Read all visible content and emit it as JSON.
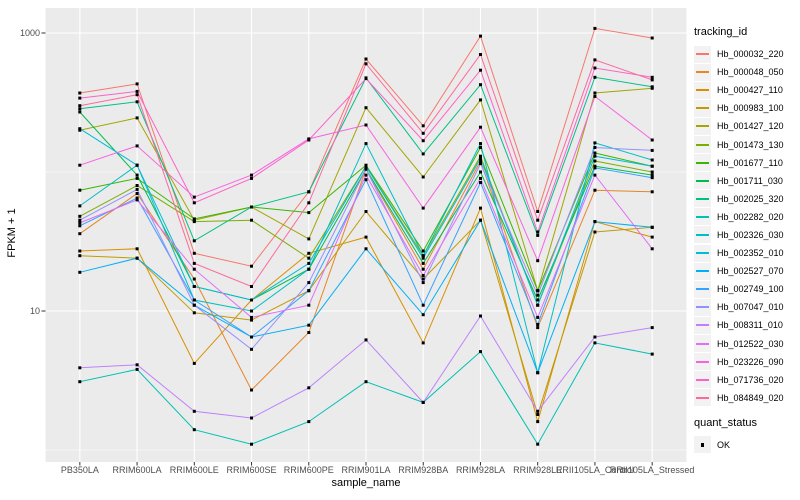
{
  "chart_data": {
    "type": "line",
    "xlabel": "sample_name",
    "ylabel": "FPKM + 1",
    "y_scale": "log10",
    "y_ticks": [
      {
        "label": "1000",
        "value": 1000
      },
      {
        "label": "10",
        "value": 10
      }
    ],
    "y_minor_gridlines": [
      100,
      1
    ],
    "categories": [
      "PB350LA",
      "RRIM600LA",
      "RRIM600LE",
      "RRIM600SE",
      "RRIM600PE",
      "RRIM901LA",
      "RRIM928BA",
      "RRIM928LA",
      "RRIM928LE",
      "RRII105LA_Control",
      "RRII105LA_Stressed"
    ],
    "legend_title": "tracking_id",
    "series": [
      {
        "name": "Hb_000032_220",
        "color": "#F8766D",
        "values": [
          370,
          430,
          26,
          21,
          72,
          650,
          215,
          950,
          52,
          1080,
          920
        ]
      },
      {
        "name": "Hb_000048_050",
        "color": "#E88526",
        "values": [
          36,
          70,
          17,
          2.7,
          7.0,
          105,
          20,
          120,
          7.6,
          74,
          72
        ]
      },
      {
        "name": "Hb_000427_110",
        "color": "#D89000",
        "values": [
          27,
          28,
          4.2,
          12,
          26,
          34,
          5.9,
          55,
          1.6,
          44,
          34
        ]
      },
      {
        "name": "Hb_000983_100",
        "color": "#C09B00",
        "values": [
          25,
          24,
          9.7,
          8.6,
          14,
          52,
          17,
          45,
          1.8,
          37,
          40
        ]
      },
      {
        "name": "Hb_001427_120",
        "color": "#A3A500",
        "values": [
          200,
          245,
          45,
          56,
          33,
          290,
          92,
          330,
          14,
          370,
          400
        ]
      },
      {
        "name": "Hb_001473_130",
        "color": "#7CAE00",
        "values": [
          48,
          80,
          44,
          45,
          24,
          110,
          25,
          130,
          11,
          120,
          100
        ]
      },
      {
        "name": "Hb_001677_110",
        "color": "#39B600",
        "values": [
          74,
          90,
          46,
          56,
          51,
          112,
          27,
          150,
          14,
          137,
          110
        ]
      },
      {
        "name": "Hb_001711_030",
        "color": "#00BB4E",
        "values": [
          270,
          95,
          15,
          12,
          20,
          105,
          22,
          100,
          12,
          110,
          95
        ]
      },
      {
        "name": "Hb_002025_320",
        "color": "#00C087",
        "values": [
          285,
          320,
          32,
          56,
          72,
          475,
          135,
          425,
          35,
          480,
          410
        ]
      },
      {
        "name": "Hb_002282_020",
        "color": "#00C0B2",
        "values": [
          3.1,
          3.8,
          1.4,
          1.1,
          1.6,
          3.1,
          2.2,
          5.1,
          1.1,
          5.9,
          4.9
        ]
      },
      {
        "name": "Hb_002326_030",
        "color": "#00BFC4",
        "values": [
          57,
          112,
          12,
          10,
          20,
          160,
          25,
          160,
          3.6,
          162,
          122
        ]
      },
      {
        "name": "Hb_002352_010",
        "color": "#00BCD8",
        "values": [
          205,
          112,
          15,
          12,
          22,
          110,
          24,
          125,
          11,
          130,
          110
        ]
      },
      {
        "name": "Hb_002527_070",
        "color": "#00B0F6",
        "values": [
          19,
          24,
          11,
          6.5,
          7.9,
          28,
          9.4,
          45,
          3.6,
          44,
          40
        ]
      },
      {
        "name": "Hb_002749_100",
        "color": "#35A2FF",
        "values": [
          41,
          65,
          12,
          6.5,
          14,
          88,
          11,
          84,
          8.0,
          107,
          91
        ]
      },
      {
        "name": "Hb_007047_010",
        "color": "#9590FF",
        "values": [
          45,
          75,
          11,
          5.3,
          16,
          105,
          16,
          115,
          13,
          150,
          143
        ]
      },
      {
        "name": "Hb_008311_010",
        "color": "#BF80FF",
        "values": [
          3.9,
          4.1,
          1.9,
          1.7,
          2.8,
          6.2,
          2.2,
          9.2,
          1.9,
          6.5,
          7.6
        ]
      },
      {
        "name": "Hb_012522_030",
        "color": "#E26EF7",
        "values": [
          43,
          63,
          20,
          9.0,
          11,
          95,
          18,
          90,
          9.0,
          95,
          28
        ]
      },
      {
        "name": "Hb_023226_090",
        "color": "#F863E0",
        "values": [
          112,
          154,
          66,
          95,
          173,
          218,
          55,
          210,
          23,
          350,
          170
        ]
      },
      {
        "name": "Hb_071736_020",
        "color": "#FF61C9",
        "values": [
          340,
          380,
          60,
          90,
          170,
          470,
          168,
          540,
          37,
          560,
          480
        ]
      },
      {
        "name": "Hb_084849_020",
        "color": "#FF689E",
        "values": [
          300,
          360,
          22,
          15,
          60,
          600,
          190,
          700,
          45,
          640,
          460
        ]
      }
    ],
    "quant_legend": {
      "title": "quant_status",
      "items": [
        "OK"
      ]
    },
    "point_color": "#000000"
  },
  "style_colors": {
    "panel_bg": "#EBEBEB",
    "gridline": "#FFFFFF",
    "axis_text": "#4D4D4D",
    "tick_mark": "#333333",
    "legend_key_bg": "#F2F2F2"
  }
}
